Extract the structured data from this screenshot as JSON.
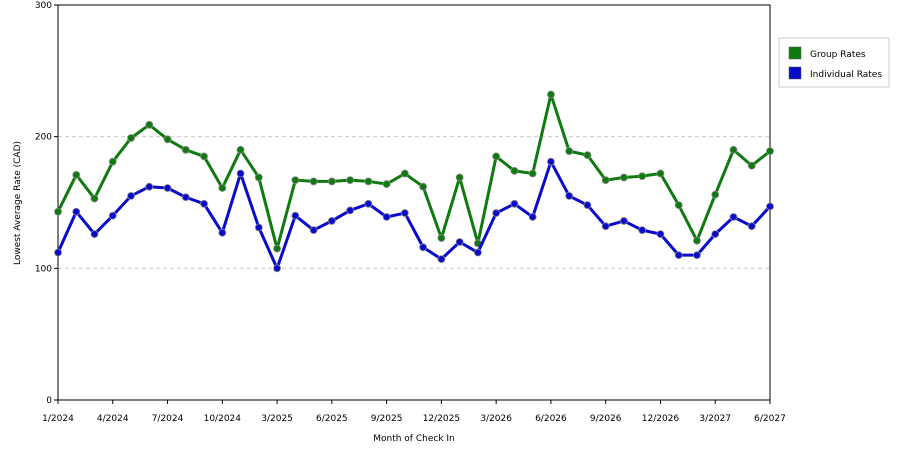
{
  "chart_data": {
    "type": "line",
    "xlabel": "Month of Check In",
    "ylabel": "Lowest Average Rate (CAD)",
    "categories": [
      "1/2024",
      null,
      null,
      "4/2024",
      null,
      null,
      "7/2024",
      null,
      null,
      "10/2024",
      null,
      null,
      "3/2025",
      null,
      null,
      "6/2025",
      null,
      null,
      "9/2025",
      null,
      null,
      "12/2025",
      null,
      null,
      "3/2026",
      null,
      null,
      "6/2026",
      null,
      null,
      "9/2026",
      null,
      null,
      "12/2026",
      null,
      null,
      "3/2027",
      null,
      null,
      "6/2027"
    ],
    "series": [
      {
        "name": "Group Rates",
        "color": "#0f7a0f",
        "values": [
          143,
          171,
          153,
          181,
          199,
          209,
          198,
          190,
          185,
          161,
          190,
          169,
          115,
          167,
          166,
          166,
          167,
          166,
          164,
          172,
          162,
          123,
          169,
          119,
          185,
          174,
          172,
          232,
          189,
          186,
          167,
          169,
          170,
          172,
          148,
          121,
          156,
          190,
          178,
          189
        ]
      },
      {
        "name": "Individual Rates",
        "color": "#0a0acd",
        "values": [
          112,
          143,
          126,
          140,
          155,
          162,
          161,
          154,
          149,
          127,
          172,
          131,
          100,
          140,
          129,
          136,
          144,
          149,
          139,
          142,
          116,
          107,
          120,
          112,
          142,
          149,
          139,
          181,
          155,
          148,
          132,
          136,
          129,
          126,
          110,
          110,
          126,
          139,
          132,
          147
        ]
      }
    ],
    "ylim": [
      0,
      300
    ],
    "yticks": [
      0,
      100,
      200,
      300
    ],
    "grid": true,
    "legend": "right"
  }
}
